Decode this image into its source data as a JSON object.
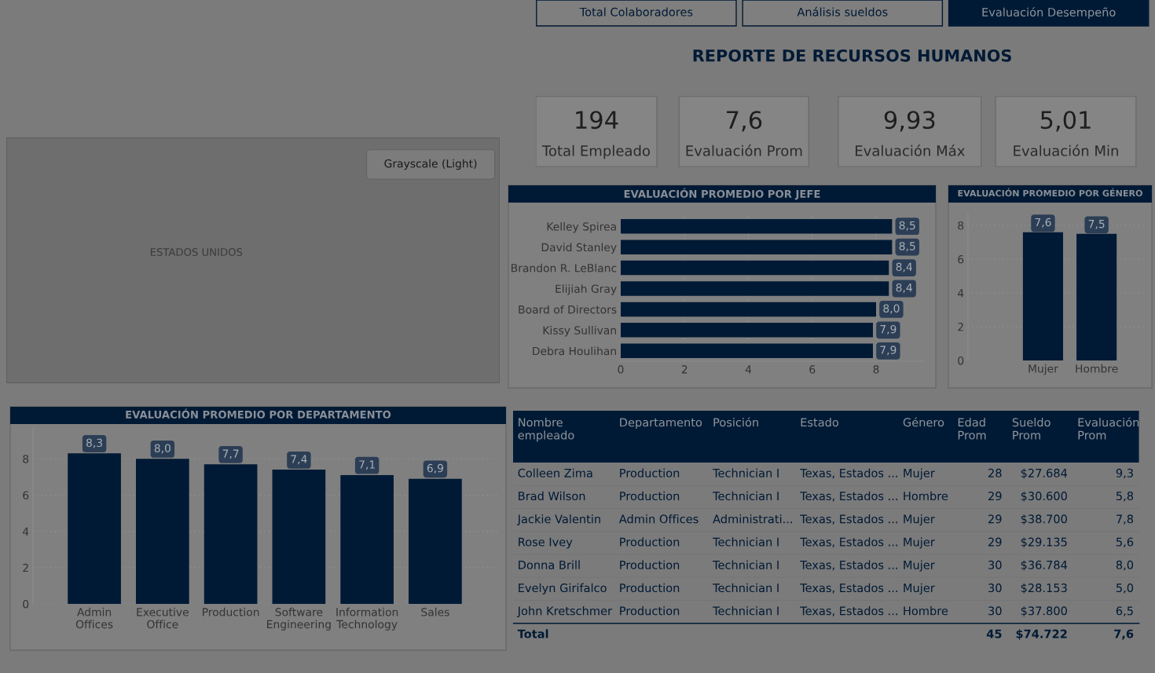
{
  "chart_data": [
    {
      "type": "other",
      "title": "REPORTE DE RECURSOS HUMANOS",
      "annotations": [
        "Total Colaboradores",
        "Análisis sueldos",
        "Evaluación Desempeño"
      ]
    },
    {
      "type": "other",
      "annotations": [
        "194",
        "Total Empleado",
        "7,6",
        "Evaluación Prom",
        "9,93",
        "Evaluación Máx",
        "5,01",
        "Evaluación Min"
      ]
    },
    {
      "type": "other",
      "annotations": [
        "Grayscale (Light)",
        "ESTADOS UNIDOS"
      ]
    },
    {
      "type": "bar",
      "orientation": "horizontal",
      "title": "EVALUACIÓN PROMEDIO POR JEFE",
      "categories": [
        "Kelley Spirea",
        "David Stanley",
        "Brandon R. LeBlanc",
        "Elijiah Gray",
        "Board of Directors",
        "Kissy Sullivan",
        "Debra Houlihan"
      ],
      "values": [
        8.5,
        8.5,
        8.4,
        8.4,
        8.0,
        7.9,
        7.9
      ],
      "value_labels": [
        "8,5",
        "8,5",
        "8,4",
        "8,4",
        "8,0",
        "7,9",
        "7,9"
      ],
      "color": "#001a35",
      "xlim": [
        0,
        9.5
      ],
      "xticks": [
        0,
        2,
        4,
        6,
        8
      ],
      "grid": "x"
    },
    {
      "type": "bar",
      "title": "EVALUACIÓN PROMEDIO POR GÉNERO",
      "categories": [
        "Mujer",
        "Hombre"
      ],
      "values": [
        7.6,
        7.5
      ],
      "value_labels": [
        "7,6",
        "7,5"
      ],
      "color": "#001a35",
      "ylim": [
        0,
        8.7
      ],
      "yticks": [
        0,
        2,
        4,
        6,
        8
      ],
      "grid": "y"
    },
    {
      "type": "bar",
      "title": "EVALUACIÓN PROMEDIO POR DEPARTAMENTO",
      "categories": [
        "Admin\nOffices",
        "Executive\nOffice",
        "Production",
        "Software\nEngineering",
        "Information\nTechnology",
        "Sales"
      ],
      "values": [
        8.3,
        8.0,
        7.7,
        7.4,
        7.1,
        6.9
      ],
      "value_labels": [
        "8,3",
        "8,0",
        "7,7",
        "7,4",
        "7,1",
        "6,9"
      ],
      "color": "#001a35",
      "ylim": [
        0,
        9.7
      ],
      "yticks": [
        0,
        2,
        4,
        6,
        8
      ],
      "grid": "y"
    },
    {
      "type": "other",
      "categories": [
        "Nombre\nempleado",
        "Departamento",
        "Posición",
        "Estado",
        "Género",
        "Edad\nProm",
        "Sueldo\nProm",
        "Evaluación\nProm"
      ],
      "cell_labels": [
        [
          "Colleen Zima",
          "Production",
          "Technician I",
          "Texas, Estados ...",
          "Mujer",
          "28",
          "$27.684",
          "9,3"
        ],
        [
          "Brad Wilson",
          "Production",
          "Technician I",
          "Texas, Estados ...",
          "Hombre",
          "29",
          "$30.600",
          "5,8"
        ],
        [
          "Jackie Valentin",
          "Admin Offices",
          "Administrati...",
          "Texas, Estados ...",
          "Mujer",
          "29",
          "$38.700",
          "7,8"
        ],
        [
          "Rose Ivey",
          "Production",
          "Technician I",
          "Texas, Estados ...",
          "Mujer",
          "29",
          "$29.135",
          "5,6"
        ],
        [
          "Donna Brill",
          "Production",
          "Technician I",
          "Texas, Estados ...",
          "Mujer",
          "30",
          "$36.784",
          "8,0"
        ],
        [
          "Evelyn Girifalco",
          "Production",
          "Technician I",
          "Texas, Estados ...",
          "Mujer",
          "30",
          "$28.153",
          "5,0"
        ],
        [
          "John Kretschmer",
          "Production",
          "Technician I",
          "Texas, Estados ...",
          "Hombre",
          "30",
          "$37.800",
          "6,5"
        ],
        [
          "Total",
          null,
          null,
          null,
          null,
          "45",
          "$74.722",
          "7,6"
        ]
      ]
    }
  ]
}
